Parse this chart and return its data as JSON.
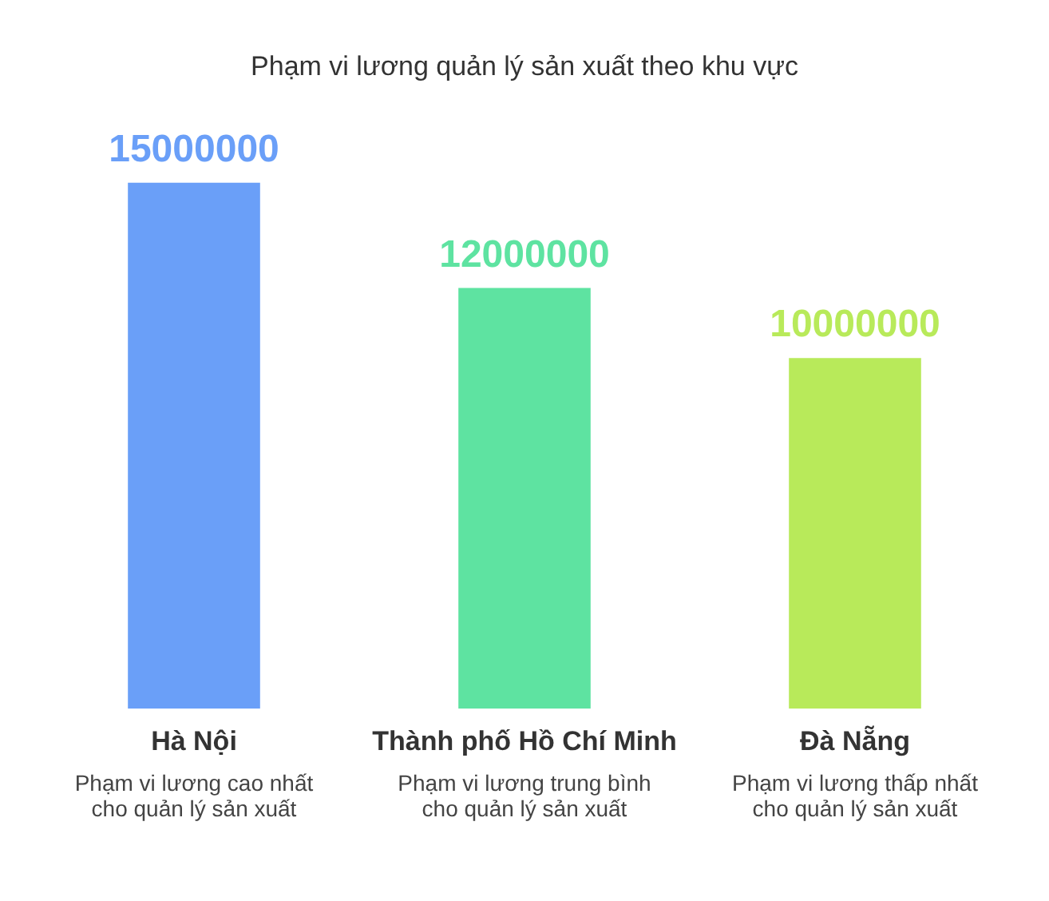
{
  "chart_data": {
    "type": "bar",
    "title": "Phạm vi lương quản lý sản xuất theo khu vực",
    "categories": [
      "Hà Nội",
      "Thành phố Hồ Chí Minh",
      "Đà Nẵng"
    ],
    "values": [
      15000000,
      12000000,
      10000000
    ],
    "colors": [
      "#6a9ff8",
      "#5ee3a1",
      "#b8ea5a"
    ],
    "data_labels": true,
    "grid": false,
    "legend": false,
    "annotations": [
      "Phạm vi lương cao nhất cho quản lý sản xuất",
      "Phạm vi lương trung bình cho quản lý sản xuất",
      "Phạm vi lương thấp nhất cho quản lý sản xuất"
    ]
  }
}
